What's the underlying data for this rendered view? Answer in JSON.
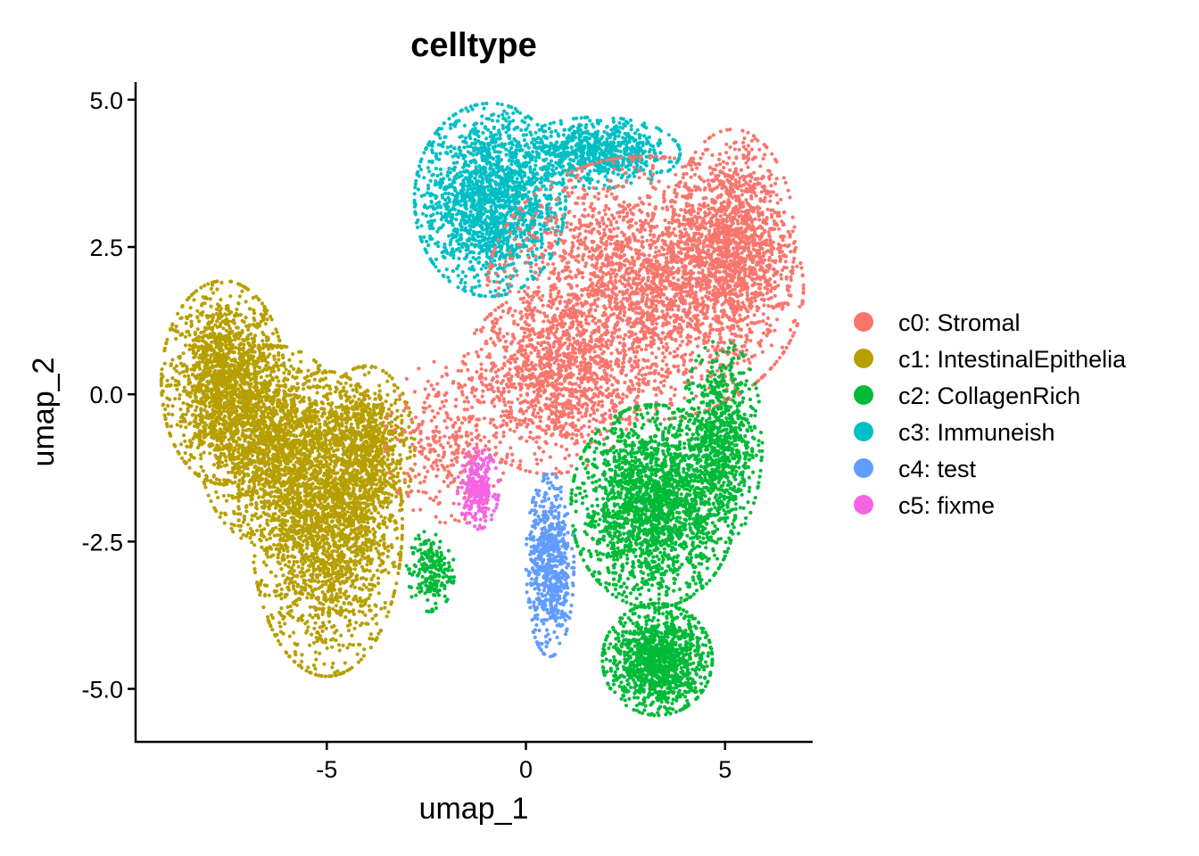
{
  "chart_data": {
    "type": "scatter",
    "title": "celltype",
    "xlabel": "umap_1",
    "ylabel": "umap_2",
    "xlim": [
      -9.8,
      7.2
    ],
    "ylim": [
      -5.9,
      5.3
    ],
    "xticks": [
      -5,
      0,
      5
    ],
    "xtick_labels": [
      "-5",
      "0",
      "5"
    ],
    "yticks": [
      5.0,
      2.5,
      0.0,
      -2.5,
      -5.0
    ],
    "ytick_labels": [
      "5.0",
      "2.5",
      "0.0",
      "-2.5",
      "-5.0"
    ],
    "grid": false,
    "legend_position": "right",
    "series": [
      {
        "name": "c0: Stromal",
        "color": "#F8766D",
        "clusters": [
          {
            "cx": 3.0,
            "cy": 1.8,
            "sx": 2.3,
            "sy": 1.3,
            "weight": 1.0
          },
          {
            "cx": 5.2,
            "cy": 2.6,
            "sx": 0.9,
            "sy": 1.1,
            "weight": 0.45
          },
          {
            "cx": 0.6,
            "cy": 0.2,
            "sx": 1.3,
            "sy": 0.9,
            "weight": 0.4
          },
          {
            "cx": -2.0,
            "cy": -0.8,
            "sx": 0.9,
            "sy": 0.8,
            "weight": 0.12
          }
        ]
      },
      {
        "name": "c1: IntestinalEpithelia",
        "color": "#B79F00",
        "clusters": [
          {
            "cx": -7.6,
            "cy": 0.2,
            "sx": 0.9,
            "sy": 1.0,
            "weight": 0.6
          },
          {
            "cx": -5.0,
            "cy": -2.2,
            "sx": 1.1,
            "sy": 1.5,
            "weight": 0.85
          },
          {
            "cx": -6.3,
            "cy": -0.9,
            "sx": 1.1,
            "sy": 1.0,
            "weight": 0.55
          },
          {
            "cx": -4.0,
            "cy": -0.9,
            "sx": 0.7,
            "sy": 0.8,
            "weight": 0.3
          }
        ]
      },
      {
        "name": "c2: CollagenRich",
        "color": "#00BA38",
        "clusters": [
          {
            "cx": 3.2,
            "cy": -1.9,
            "sx": 1.2,
            "sy": 1.0,
            "weight": 0.8
          },
          {
            "cx": 3.3,
            "cy": -4.5,
            "sx": 0.8,
            "sy": 0.55,
            "weight": 0.45
          },
          {
            "cx": 4.9,
            "cy": -0.8,
            "sx": 0.6,
            "sy": 1.0,
            "weight": 0.3
          },
          {
            "cx": -2.4,
            "cy": -3.0,
            "sx": 0.35,
            "sy": 0.4,
            "weight": 0.08
          }
        ]
      },
      {
        "name": "c3: Immuneish",
        "color": "#00BFC4",
        "clusters": [
          {
            "cx": -0.9,
            "cy": 3.3,
            "sx": 1.1,
            "sy": 0.95,
            "weight": 0.7
          },
          {
            "cx": 1.8,
            "cy": 4.1,
            "sx": 1.2,
            "sy": 0.35,
            "weight": 0.3
          }
        ]
      },
      {
        "name": "c4: test",
        "color": "#619CFF",
        "clusters": [
          {
            "cx": 0.6,
            "cy": -2.9,
            "sx": 0.35,
            "sy": 0.9,
            "weight": 0.25
          }
        ]
      },
      {
        "name": "c5: fixme",
        "color": "#F564E3",
        "clusters": [
          {
            "cx": -1.2,
            "cy": -1.6,
            "sx": 0.3,
            "sy": 0.4,
            "weight": 0.1
          }
        ]
      }
    ]
  }
}
